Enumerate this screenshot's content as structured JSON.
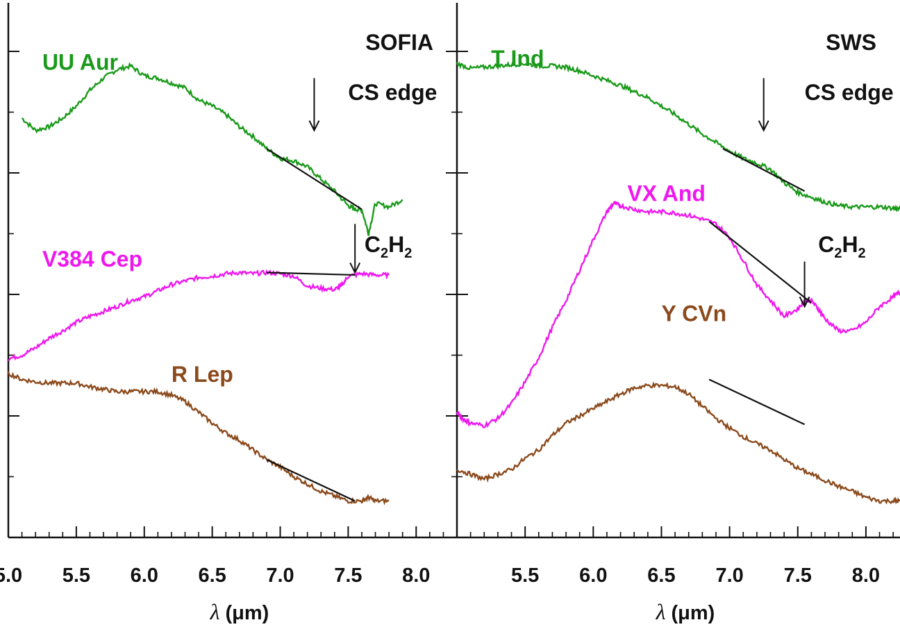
{
  "chart_data": [
    {
      "type": "line",
      "panel_label": "SOFIA",
      "xlabel_symbol": "λ",
      "xlabel_unit": "(μm)",
      "xlim": [
        5.0,
        8.3
      ],
      "xticks": [
        {
          "value": 5.0,
          "label": "5.0"
        },
        {
          "value": 5.5,
          "label": "5.5"
        },
        {
          "value": 6.0,
          "label": "6.0"
        },
        {
          "value": 6.5,
          "label": "6.5"
        },
        {
          "value": 7.0,
          "label": "7.0"
        },
        {
          "value": 7.5,
          "label": "7.5"
        },
        {
          "value": 8.0,
          "label": "8.0"
        }
      ],
      "ylim": [
        0,
        4.4
      ],
      "yticks": [
        1,
        2,
        3,
        4
      ],
      "series": [
        {
          "name": "UU Aur",
          "color": "#1a9a1a",
          "label_pos": [
            5.25,
            3.85
          ],
          "x": [
            5.1,
            5.2,
            5.3,
            5.4,
            5.5,
            5.6,
            5.7,
            5.8,
            5.9,
            6.0,
            6.1,
            6.2,
            6.3,
            6.4,
            6.5,
            6.6,
            6.7,
            6.8,
            6.9,
            7.0,
            7.1,
            7.2,
            7.3,
            7.4,
            7.5,
            7.55,
            7.6,
            7.65,
            7.7,
            7.8,
            7.9
          ],
          "y": [
            3.45,
            3.35,
            3.38,
            3.45,
            3.55,
            3.68,
            3.78,
            3.85,
            3.88,
            3.8,
            3.78,
            3.74,
            3.7,
            3.6,
            3.55,
            3.48,
            3.38,
            3.3,
            3.2,
            3.12,
            3.1,
            3.05,
            2.95,
            2.85,
            2.73,
            2.7,
            2.7,
            2.5,
            2.75,
            2.72,
            2.78
          ],
          "fit": {
            "x": [
              6.9,
              7.6
            ],
            "y": [
              3.2,
              2.7
            ]
          }
        },
        {
          "name": "V384 Cep",
          "color": "#ee18ee",
          "label_pos": [
            5.25,
            2.23
          ],
          "x": [
            5.0,
            5.1,
            5.2,
            5.3,
            5.4,
            5.5,
            5.6,
            5.7,
            5.8,
            5.9,
            6.0,
            6.1,
            6.2,
            6.3,
            6.4,
            6.5,
            6.6,
            6.7,
            6.8,
            6.9,
            7.0,
            7.1,
            7.2,
            7.3,
            7.4,
            7.45,
            7.5,
            7.6,
            7.7,
            7.8
          ],
          "y": [
            1.47,
            1.5,
            1.56,
            1.64,
            1.7,
            1.77,
            1.82,
            1.86,
            1.9,
            1.95,
            1.98,
            2.03,
            2.08,
            2.11,
            2.14,
            2.15,
            2.17,
            2.18,
            2.17,
            2.18,
            2.17,
            2.15,
            2.07,
            2.05,
            2.04,
            2.07,
            2.15,
            2.17,
            2.16,
            2.16
          ],
          "fit": {
            "x": [
              6.9,
              7.55
            ],
            "y": [
              2.18,
              2.16
            ]
          }
        },
        {
          "name": "R Lep",
          "color": "#8b4a1c",
          "label_pos": [
            6.2,
            1.28
          ],
          "x": [
            5.0,
            5.1,
            5.2,
            5.3,
            5.4,
            5.5,
            5.6,
            5.7,
            5.8,
            5.9,
            6.0,
            6.1,
            6.2,
            6.3,
            6.4,
            6.5,
            6.6,
            6.7,
            6.8,
            6.9,
            7.0,
            7.1,
            7.2,
            7.3,
            7.4,
            7.5,
            7.6,
            7.65,
            7.7,
            7.8
          ],
          "y": [
            1.35,
            1.3,
            1.28,
            1.27,
            1.27,
            1.27,
            1.24,
            1.22,
            1.2,
            1.2,
            1.2,
            1.2,
            1.17,
            1.12,
            1.03,
            0.94,
            0.86,
            0.8,
            0.72,
            0.64,
            0.58,
            0.5,
            0.44,
            0.38,
            0.34,
            0.3,
            0.3,
            0.33,
            0.3,
            0.3
          ],
          "fit": {
            "x": [
              6.9,
              7.55
            ],
            "y": [
              0.64,
              0.3
            ]
          }
        }
      ],
      "annotations": [
        {
          "text": "CS edge",
          "label_pos": [
            7.5,
            3.6
          ],
          "arrow_x": 7.25,
          "arrow_top": 3.78,
          "arrow_bottom": 3.35
        },
        {
          "text": "C",
          "sub": "2",
          "text2": "H",
          "sub2": "2",
          "label_pos": [
            7.62,
            2.35
          ],
          "arrow_x": 7.55,
          "arrow_top": 2.58,
          "arrow_bottom": 2.18
        }
      ]
    },
    {
      "type": "line",
      "panel_label": "SWS",
      "xlabel_symbol": "λ",
      "xlabel_unit": "(μm)",
      "xlim": [
        5.0,
        8.25
      ],
      "xticks": [
        {
          "value": 5.5,
          "label": "5.5"
        },
        {
          "value": 6.0,
          "label": "6.0"
        },
        {
          "value": 6.5,
          "label": "6.5"
        },
        {
          "value": 7.0,
          "label": "7.0"
        },
        {
          "value": 7.5,
          "label": "7.5"
        },
        {
          "value": 8.0,
          "label": "8.0"
        }
      ],
      "ylim": [
        0,
        4.4
      ],
      "yticks": [
        1,
        2,
        3,
        4
      ],
      "series": [
        {
          "name": "T Ind",
          "color": "#1a9a1a",
          "label_pos": [
            5.25,
            3.88
          ],
          "x": [
            5.0,
            5.1,
            5.2,
            5.3,
            5.4,
            5.5,
            5.6,
            5.7,
            5.8,
            5.9,
            6.0,
            6.1,
            6.2,
            6.3,
            6.4,
            6.5,
            6.6,
            6.7,
            6.8,
            6.9,
            7.0,
            7.1,
            7.2,
            7.3,
            7.4,
            7.5,
            7.6,
            7.7,
            7.8,
            7.9,
            8.0,
            8.1,
            8.2,
            8.25
          ],
          "y": [
            3.9,
            3.86,
            3.87,
            3.88,
            3.89,
            3.9,
            3.88,
            3.88,
            3.87,
            3.84,
            3.8,
            3.76,
            3.72,
            3.67,
            3.62,
            3.55,
            3.48,
            3.4,
            3.32,
            3.25,
            3.18,
            3.12,
            3.08,
            3.03,
            2.92,
            2.84,
            2.8,
            2.76,
            2.73,
            2.72,
            2.72,
            2.72,
            2.71,
            2.7
          ],
          "fit": {
            "x": [
              6.95,
              7.55
            ],
            "y": [
              3.2,
              2.85
            ]
          }
        },
        {
          "name": "VX And",
          "color": "#ee18ee",
          "label_pos": [
            6.25,
            2.77
          ],
          "x": [
            5.0,
            5.05,
            5.1,
            5.2,
            5.3,
            5.4,
            5.5,
            5.6,
            5.7,
            5.8,
            5.9,
            6.0,
            6.1,
            6.15,
            6.2,
            6.3,
            6.4,
            6.5,
            6.6,
            6.7,
            6.8,
            6.9,
            7.0,
            7.1,
            7.2,
            7.3,
            7.4,
            7.5,
            7.55,
            7.6,
            7.65,
            7.7,
            7.8,
            7.9,
            8.0,
            8.1,
            8.2,
            8.25
          ],
          "y": [
            1.03,
            0.97,
            0.94,
            0.92,
            0.98,
            1.1,
            1.28,
            1.48,
            1.73,
            1.95,
            2.2,
            2.45,
            2.68,
            2.75,
            2.73,
            2.7,
            2.68,
            2.68,
            2.67,
            2.65,
            2.62,
            2.58,
            2.47,
            2.28,
            2.08,
            1.95,
            1.82,
            1.88,
            1.95,
            1.95,
            1.88,
            1.8,
            1.7,
            1.7,
            1.77,
            1.9,
            1.98,
            2.02
          ],
          "fit": {
            "x": [
              6.85,
              7.6
            ],
            "y": [
              2.6,
              1.93
            ]
          }
        },
        {
          "name": "Y CVn",
          "color": "#8b4a1c",
          "label_pos": [
            6.5,
            1.78
          ],
          "x": [
            5.0,
            5.1,
            5.2,
            5.3,
            5.4,
            5.5,
            5.6,
            5.7,
            5.8,
            5.9,
            6.0,
            6.1,
            6.2,
            6.3,
            6.4,
            6.5,
            6.6,
            6.7,
            6.8,
            6.9,
            7.0,
            7.1,
            7.2,
            7.3,
            7.4,
            7.5,
            7.6,
            7.7,
            7.8,
            7.9,
            8.0,
            8.1,
            8.2,
            8.25
          ],
          "y": [
            0.56,
            0.52,
            0.48,
            0.52,
            0.56,
            0.65,
            0.72,
            0.84,
            0.94,
            1.0,
            1.06,
            1.12,
            1.18,
            1.23,
            1.25,
            1.25,
            1.24,
            1.18,
            1.08,
            0.98,
            0.9,
            0.83,
            0.77,
            0.72,
            0.64,
            0.57,
            0.52,
            0.47,
            0.42,
            0.38,
            0.33,
            0.3,
            0.3,
            0.3
          ],
          "fit": {
            "x": [
              6.85,
              7.55
            ],
            "y": [
              1.3,
              0.93
            ]
          }
        }
      ],
      "annotations": [
        {
          "text": "CS edge",
          "label_pos": [
            7.55,
            3.6
          ],
          "arrow_x": 7.25,
          "arrow_top": 3.78,
          "arrow_bottom": 3.35
        },
        {
          "text": "C",
          "sub": "2",
          "text2": "H",
          "sub2": "2",
          "label_pos": [
            7.65,
            2.35
          ],
          "arrow_x": 7.55,
          "arrow_top": 2.27,
          "arrow_bottom": 1.9
        }
      ]
    }
  ]
}
